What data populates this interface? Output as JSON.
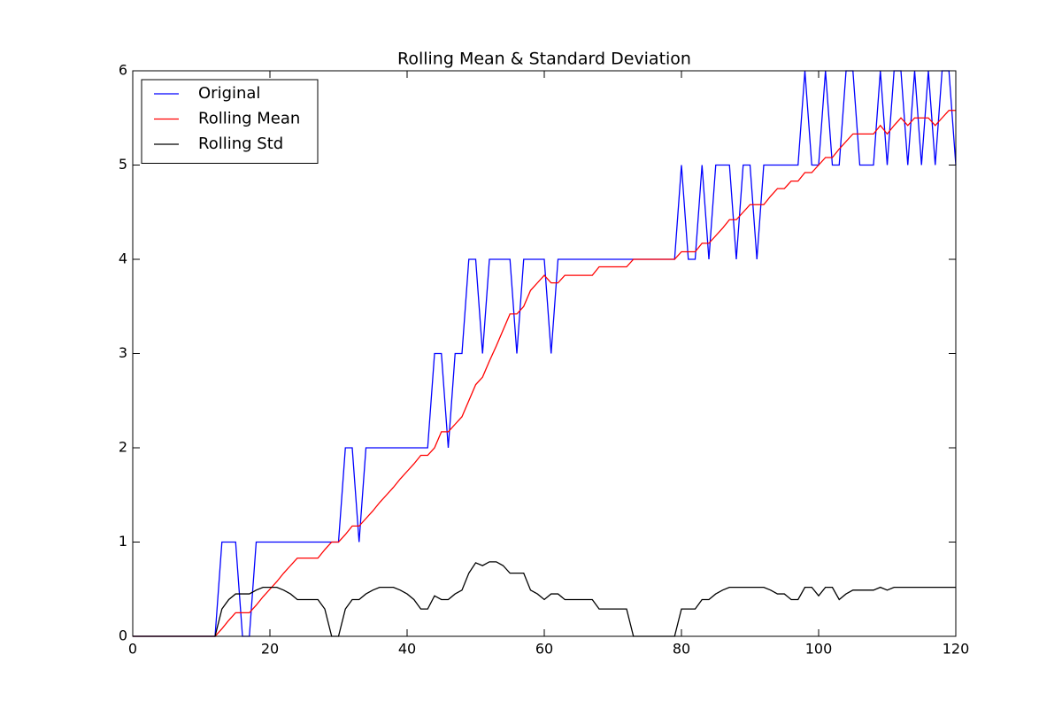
{
  "chart_data": {
    "type": "line",
    "title": "Rolling Mean & Standard Deviation",
    "x": [
      0,
      1,
      2,
      3,
      4,
      5,
      6,
      7,
      8,
      9,
      10,
      11,
      12,
      13,
      14,
      15,
      16,
      17,
      18,
      19,
      20,
      21,
      22,
      23,
      24,
      25,
      26,
      27,
      28,
      29,
      30,
      31,
      32,
      33,
      34,
      35,
      36,
      37,
      38,
      39,
      40,
      41,
      42,
      43,
      44,
      45,
      46,
      47,
      48,
      49,
      50,
      51,
      52,
      53,
      54,
      55,
      56,
      57,
      58,
      59,
      60,
      61,
      62,
      63,
      64,
      65,
      66,
      67,
      68,
      69,
      70,
      71,
      72,
      73,
      74,
      75,
      76,
      77,
      78,
      79,
      80,
      81,
      82,
      83,
      84,
      85,
      86,
      87,
      88,
      89,
      90,
      91,
      92,
      93,
      94,
      95,
      96,
      97,
      98,
      99,
      100,
      101,
      102,
      103,
      104,
      105,
      106,
      107,
      108,
      109,
      110,
      111,
      112,
      113,
      114,
      115,
      116,
      117,
      118,
      119,
      120
    ],
    "series": [
      {
        "name": "Original",
        "color": "#0000ff",
        "values": [
          0,
          0,
          0,
          0,
          0,
          0,
          0,
          0,
          0,
          0,
          0,
          0,
          0,
          1,
          1,
          1,
          0,
          0,
          1,
          1,
          1,
          1,
          1,
          1,
          1,
          1,
          1,
          1,
          1,
          1,
          1,
          2,
          2,
          1,
          2,
          2,
          2,
          2,
          2,
          2,
          2,
          2,
          2,
          2,
          3,
          3,
          2,
          3,
          3,
          4,
          4,
          3,
          4,
          4,
          4,
          4,
          3,
          4,
          4,
          4,
          4,
          3,
          4,
          4,
          4,
          4,
          4,
          4,
          4,
          4,
          4,
          4,
          4,
          4,
          4,
          4,
          4,
          4,
          4,
          4,
          5,
          4,
          4,
          5,
          4,
          5,
          5,
          5,
          4,
          5,
          5,
          4,
          5,
          5,
          5,
          5,
          5,
          5,
          6,
          5,
          5,
          6,
          5,
          5,
          6,
          6,
          5,
          5,
          5,
          6,
          5,
          6,
          6,
          5,
          6,
          5,
          6,
          5,
          6,
          6,
          5
        ]
      },
      {
        "name": "Rolling Mean",
        "color": "#ff0000",
        "values": [
          0,
          0,
          0,
          0,
          0,
          0,
          0,
          0,
          0,
          0,
          0,
          0,
          0,
          0.08,
          0.17,
          0.25,
          0.25,
          0.25,
          0.33,
          0.42,
          0.5,
          0.58,
          0.67,
          0.75,
          0.83,
          0.83,
          0.83,
          0.83,
          0.92,
          1,
          1,
          1.08,
          1.17,
          1.17,
          1.25,
          1.33,
          1.42,
          1.5,
          1.58,
          1.67,
          1.75,
          1.83,
          1.92,
          1.92,
          2,
          2.17,
          2.17,
          2.25,
          2.33,
          2.5,
          2.67,
          2.75,
          2.92,
          3.08,
          3.25,
          3.42,
          3.42,
          3.5,
          3.67,
          3.75,
          3.83,
          3.75,
          3.75,
          3.83,
          3.83,
          3.83,
          3.83,
          3.83,
          3.92,
          3.92,
          3.92,
          3.92,
          3.92,
          4,
          4,
          4,
          4,
          4,
          4,
          4,
          4.08,
          4.08,
          4.08,
          4.17,
          4.17,
          4.25,
          4.33,
          4.42,
          4.42,
          4.5,
          4.58,
          4.58,
          4.58,
          4.67,
          4.75,
          4.75,
          4.83,
          4.83,
          4.92,
          4.92,
          5,
          5.08,
          5.08,
          5.17,
          5.25,
          5.33,
          5.33,
          5.33,
          5.33,
          5.42,
          5.33,
          5.42,
          5.5,
          5.42,
          5.5,
          5.5,
          5.5,
          5.42,
          5.5,
          5.58,
          5.58
        ]
      },
      {
        "name": "Rolling Std",
        "color": "#000000",
        "values": [
          0,
          0,
          0,
          0,
          0,
          0,
          0,
          0,
          0,
          0,
          0,
          0,
          0,
          0.29,
          0.39,
          0.45,
          0.45,
          0.45,
          0.49,
          0.52,
          0.52,
          0.52,
          0.49,
          0.45,
          0.39,
          0.39,
          0.39,
          0.39,
          0.29,
          0,
          0,
          0.29,
          0.39,
          0.39,
          0.45,
          0.49,
          0.52,
          0.52,
          0.52,
          0.49,
          0.45,
          0.39,
          0.29,
          0.29,
          0.43,
          0.39,
          0.39,
          0.45,
          0.49,
          0.67,
          0.78,
          0.75,
          0.79,
          0.79,
          0.75,
          0.67,
          0.67,
          0.67,
          0.49,
          0.45,
          0.39,
          0.45,
          0.45,
          0.39,
          0.39,
          0.39,
          0.39,
          0.39,
          0.29,
          0.29,
          0.29,
          0.29,
          0.29,
          0,
          0,
          0,
          0,
          0,
          0,
          0,
          0.29,
          0.29,
          0.29,
          0.39,
          0.39,
          0.45,
          0.49,
          0.52,
          0.52,
          0.52,
          0.52,
          0.52,
          0.52,
          0.49,
          0.45,
          0.45,
          0.39,
          0.39,
          0.52,
          0.52,
          0.43,
          0.52,
          0.52,
          0.39,
          0.45,
          0.49,
          0.49,
          0.49,
          0.49,
          0.52,
          0.49,
          0.52,
          0.52,
          0.52,
          0.52,
          0.52,
          0.52,
          0.52,
          0.52,
          0.52,
          0.52
        ]
      }
    ],
    "xlim": [
      0,
      120
    ],
    "xticks": [
      0,
      20,
      40,
      60,
      80,
      100,
      120
    ],
    "ylim": [
      0,
      6
    ],
    "yticks": [
      0,
      1,
      2,
      3,
      4,
      5,
      6
    ],
    "legend": "upper left"
  }
}
